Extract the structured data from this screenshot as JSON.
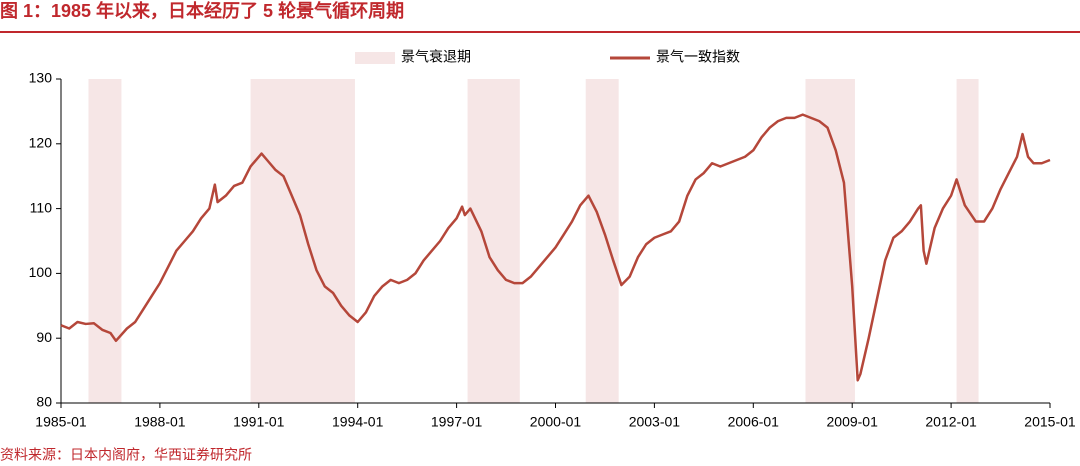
{
  "chart_data": {
    "type": "line",
    "title": "图 1：1985 年以来，日本经历了 5 轮景气循环周期",
    "source": "资料来源：日本内阁府，华西证券研究所",
    "legend_position": "top",
    "recessions": {
      "name": "景气衰退期",
      "color": "#f6e6e6",
      "periods": [
        [
          "1985-11",
          "1986-11"
        ],
        [
          "1990-10",
          "1993-12"
        ],
        [
          "1997-05",
          "1998-12"
        ],
        [
          "2000-12",
          "2001-12"
        ],
        [
          "2007-08",
          "2009-02"
        ],
        [
          "2012-03",
          "2012-11"
        ]
      ]
    },
    "x": [
      "1985-01",
      "1985-04",
      "1985-07",
      "1985-10",
      "1986-01",
      "1986-04",
      "1986-07",
      "1986-09",
      "1987-01",
      "1987-04",
      "1987-07",
      "1987-10",
      "1988-01",
      "1988-04",
      "1988-07",
      "1988-10",
      "1989-01",
      "1989-04",
      "1989-07",
      "1989-09",
      "1989-10",
      "1990-01",
      "1990-04",
      "1990-07",
      "1990-10",
      "1991-01",
      "1991-02",
      "1991-04",
      "1991-07",
      "1991-10",
      "1992-01",
      "1992-04",
      "1992-07",
      "1992-10",
      "1993-01",
      "1993-04",
      "1993-07",
      "1993-10",
      "1994-01",
      "1994-04",
      "1994-07",
      "1994-10",
      "1995-01",
      "1995-04",
      "1995-07",
      "1995-10",
      "1996-01",
      "1996-04",
      "1996-07",
      "1996-10",
      "1997-01",
      "1997-03",
      "1997-04",
      "1997-06",
      "1997-10",
      "1998-01",
      "1998-04",
      "1998-07",
      "1998-10",
      "1999-01",
      "1999-04",
      "1999-07",
      "1999-10",
      "2000-01",
      "2000-04",
      "2000-07",
      "2000-10",
      "2001-01",
      "2001-04",
      "2001-07",
      "2001-10",
      "2002-01",
      "2002-04",
      "2002-07",
      "2002-10",
      "2003-01",
      "2003-04",
      "2003-07",
      "2003-10",
      "2004-01",
      "2004-04",
      "2004-07",
      "2004-10",
      "2005-01",
      "2005-04",
      "2005-07",
      "2005-10",
      "2006-01",
      "2006-04",
      "2006-07",
      "2006-10",
      "2007-01",
      "2007-04",
      "2007-07",
      "2007-10",
      "2008-01",
      "2008-04",
      "2008-07",
      "2008-10",
      "2009-01",
      "2009-03",
      "2009-04",
      "2009-07",
      "2009-10",
      "2010-01",
      "2010-04",
      "2010-07",
      "2010-10",
      "2011-01",
      "2011-02",
      "2011-03",
      "2011-04",
      "2011-07",
      "2011-10",
      "2012-01",
      "2012-03",
      "2012-06",
      "2012-10",
      "2013-01",
      "2013-04",
      "2013-07",
      "2013-10",
      "2014-01",
      "2014-03",
      "2014-05",
      "2014-07",
      "2014-10",
      "2015-01"
    ],
    "series": [
      {
        "name": "景气一致指数",
        "color": "#b5473a",
        "values": [
          92,
          91.5,
          92.5,
          92.2,
          92.3,
          91.3,
          90.8,
          89.6,
          91.5,
          92.5,
          94.5,
          96.5,
          98.5,
          101,
          103.5,
          105,
          106.5,
          108.5,
          110,
          113.7,
          111,
          112,
          113.5,
          114,
          116.5,
          118,
          118.5,
          117.5,
          116,
          115,
          112,
          109,
          104.5,
          100.5,
          98,
          97,
          95,
          93.5,
          92.5,
          94,
          96.5,
          98,
          99,
          98.5,
          99,
          100,
          102,
          103.5,
          105,
          107,
          108.5,
          110.3,
          109,
          110,
          106.5,
          102.5,
          100.5,
          99,
          98.5,
          98.5,
          99.5,
          101,
          102.5,
          104,
          106,
          108,
          110.5,
          112,
          109.5,
          106,
          102,
          98.2,
          99.5,
          102.5,
          104.5,
          105.5,
          106,
          106.5,
          108,
          112,
          114.5,
          115.5,
          117,
          116.5,
          117,
          117.5,
          118,
          119,
          121,
          122.5,
          123.5,
          124,
          124,
          124.5,
          124,
          123.5,
          122.5,
          119,
          114,
          98,
          83.5,
          84.5,
          90,
          96,
          102,
          105.5,
          106.5,
          108,
          110,
          110.5,
          103.5,
          101.5,
          107,
          110,
          112,
          114.5,
          110.5,
          108,
          108,
          110,
          113,
          115.5,
          118,
          121.5,
          118,
          117,
          117,
          117.5
        ]
      }
    ],
    "xticks": [
      "1985-01",
      "1988-01",
      "1991-01",
      "1994-01",
      "1997-01",
      "2000-01",
      "2003-01",
      "2006-01",
      "2009-01",
      "2012-01",
      "2015-01"
    ],
    "xlim": [
      "1985-01",
      "2015-01"
    ],
    "ylim": [
      80,
      130
    ],
    "yticks": [
      80,
      90,
      100,
      110,
      120,
      130
    ],
    "grid": false
  }
}
